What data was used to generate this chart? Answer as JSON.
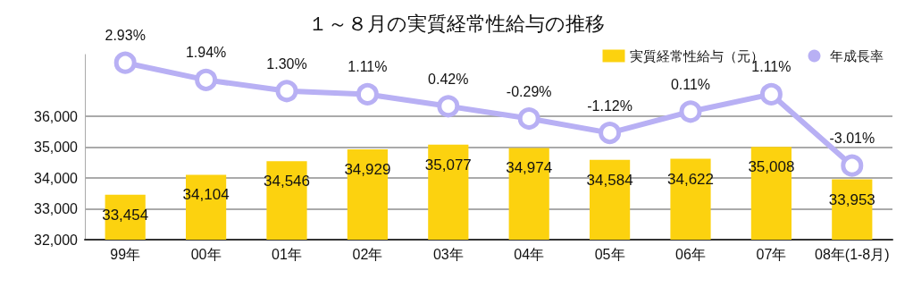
{
  "chart_data": {
    "type": "bar",
    "title": "１～８月の実質経常性給与の推移",
    "categories": [
      "99年",
      "00年",
      "01年",
      "02年",
      "03年",
      "04年",
      "05年",
      "06年",
      "07年",
      "08年(1-8月)"
    ],
    "series": [
      {
        "name": "実質経常性給与（元）",
        "color": "#fcd20f",
        "values": [
          33454,
          34104,
          34546,
          34929,
          35077,
          34974,
          34584,
          34622,
          35008,
          33953
        ],
        "value_labels": [
          "33,454",
          "34,104",
          "34,546",
          "34,929",
          "35,077",
          "34,974",
          "34,584",
          "34,622",
          "35,008",
          "33,953"
        ]
      },
      {
        "name": "年成長率",
        "type": "line",
        "axis": "y2",
        "color": "#b8b0f4",
        "marker": "circle",
        "values": [
          2.93,
          1.94,
          1.3,
          1.11,
          0.42,
          -0.29,
          -1.12,
          0.11,
          1.11,
          -3.01
        ],
        "value_labels": [
          "2.93%",
          "1.94%",
          "1.30%",
          "1.11%",
          "0.42%",
          "-0.29%",
          "-1.12%",
          "0.11%",
          "1.11%",
          "-3.01%"
        ]
      }
    ],
    "ylim": [
      32000,
      38000
    ],
    "yticks": [
      {
        "value": 32000,
        "label": "32,000"
      },
      {
        "value": 33000,
        "label": "33,000"
      },
      {
        "value": 34000,
        "label": "34,000"
      },
      {
        "value": 35000,
        "label": "35,000"
      },
      {
        "value": 36000,
        "label": "36,000"
      }
    ],
    "tick_labels": "xy",
    "grid": "y",
    "legend": "top right"
  }
}
